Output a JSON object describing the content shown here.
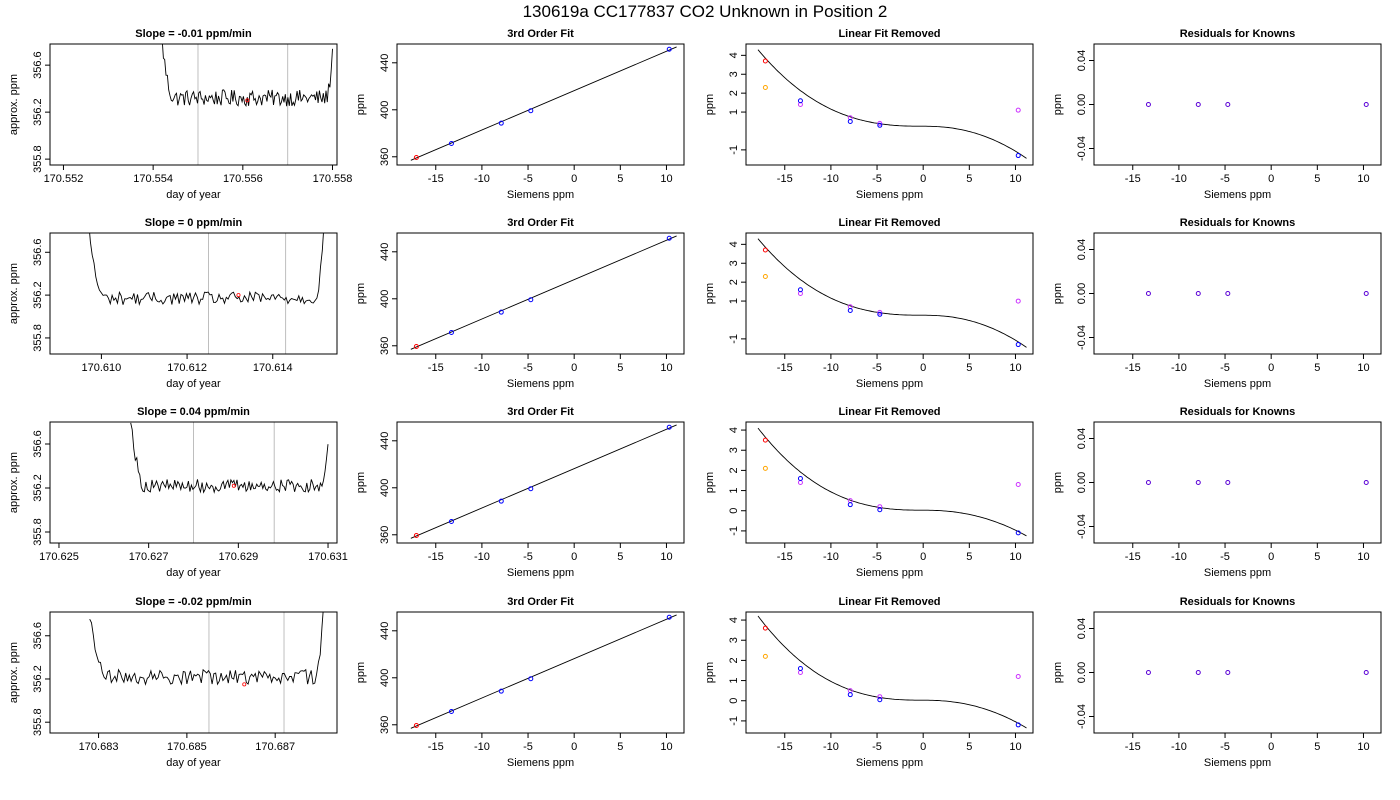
{
  "main_title": "130619a     CC177837   CO2 Unknown in Position  2",
  "colors": {
    "trace": "#000000",
    "gridline": "#bebebe",
    "known": "#0000ff",
    "target": "#ff0000",
    "orange": "#ffa500",
    "magenta": "#cc33ff",
    "residual": "#5a00d6"
  },
  "chart_data": [
    {
      "type": "line",
      "row": 1,
      "panel": "time-series",
      "title": "Slope =  -0.01  ppm/min",
      "xlabel": "day of year",
      "ylabel": "approx. ppm",
      "xlim": [
        170.5517,
        170.5581
      ],
      "ylim": [
        355.75,
        356.78
      ],
      "xticks": [
        "170.552",
        "170.554",
        "170.556",
        "170.558"
      ],
      "xtick_values": [
        170.552,
        170.554,
        170.556,
        170.558
      ],
      "yticks": [
        "355.8",
        "356.2",
        "356.6"
      ],
      "ytick_values": [
        355.8,
        356.2,
        356.6
      ],
      "trace_x_range": [
        170.5542,
        170.558
      ],
      "baseline": 356.32,
      "noise": 0.07,
      "start_level": 356.8,
      "end_level": 356.72,
      "vlines": [
        170.555,
        170.557
      ],
      "highlight": [
        170.5561,
        356.3
      ]
    },
    {
      "type": "scatter",
      "row": 1,
      "panel": "fit",
      "title": "3rd Order Fit",
      "xlabel": "Siemens ppm",
      "ylabel": "ppm",
      "xlim": [
        -19.2,
        11.9
      ],
      "ylim": [
        353,
        456
      ],
      "xticks": [
        "-15",
        "-10",
        "-5",
        "0",
        "5",
        "10"
      ],
      "xtick_values": [
        -15,
        -10,
        -5,
        0,
        5,
        10
      ],
      "yticks": [
        "360",
        "400",
        "440"
      ],
      "ytick_values": [
        360,
        400,
        440
      ],
      "fit_line": {
        "x0": -17.7,
        "y0": 357.0,
        "x1": 11.1,
        "y1": 453.5
      },
      "knowns": {
        "x": [
          -13.3,
          -7.9,
          -4.7,
          10.3
        ],
        "y": [
          371.3,
          388.6,
          399.2,
          451.5
        ]
      },
      "target": {
        "x": [
          -17.1
        ],
        "y": [
          359.4
        ]
      }
    },
    {
      "type": "scatter",
      "row": 1,
      "panel": "linear-fit-removed",
      "title": "Linear Fit Removed",
      "xlabel": "Siemens ppm",
      "ylabel": "ppm",
      "xlim": [
        -19.2,
        11.9
      ],
      "ylim": [
        -1.8,
        4.6
      ],
      "xticks": [
        "-15",
        "-10",
        "-5",
        "0",
        "5",
        "10"
      ],
      "xtick_values": [
        -15,
        -10,
        -5,
        0,
        5,
        10
      ],
      "yticks": [
        "-1",
        "1",
        "2",
        "3",
        "4"
      ],
      "ytick_values": [
        -1,
        1,
        2,
        3,
        4
      ],
      "curve_x_range": [
        -17.9,
        11.2
      ],
      "curve_coeffs": [
        0.3,
        -0.0037,
        -0.0113,
        -0.00085
      ],
      "knowns": {
        "x": [
          -13.3,
          -7.9,
          -4.7,
          10.3
        ],
        "y": [
          1.6,
          0.5,
          0.3,
          -1.3
        ]
      },
      "magenta": {
        "x": [
          -13.3,
          -7.9,
          -4.7,
          10.3
        ],
        "y": [
          1.4,
          0.7,
          0.4,
          1.1
        ]
      },
      "orange": {
        "x": [
          -17.1
        ],
        "y": [
          2.3
        ]
      },
      "target": {
        "x": [
          -17.1
        ],
        "y": [
          3.7
        ]
      }
    },
    {
      "type": "scatter",
      "row": 1,
      "panel": "residuals",
      "title": "Residuals for Knowns",
      "xlabel": "Siemens ppm",
      "ylabel": "ppm",
      "xlim": [
        -19.2,
        11.9
      ],
      "ylim": [
        -0.055,
        0.055
      ],
      "xticks": [
        "-15",
        "-10",
        "-5",
        "0",
        "5",
        "10"
      ],
      "xtick_values": [
        -15,
        -10,
        -5,
        0,
        5,
        10
      ],
      "yticks": [
        "-0.04",
        "0.00",
        "0.04"
      ],
      "ytick_values": [
        -0.04,
        0.0,
        0.04
      ],
      "points": {
        "x": [
          -13.3,
          -7.9,
          -4.7,
          10.3
        ],
        "y": [
          0,
          0,
          0,
          0
        ]
      }
    },
    {
      "type": "line",
      "row": 2,
      "panel": "time-series",
      "title": "Slope =  0  ppm/min",
      "xlabel": "day of year",
      "ylabel": "approx. ppm",
      "xlim": [
        170.6088,
        170.6155
      ],
      "ylim": [
        355.65,
        356.78
      ],
      "xticks": [
        "170.610",
        "170.612",
        "170.614"
      ],
      "xtick_values": [
        170.61,
        170.612,
        170.614
      ],
      "yticks": [
        "355.8",
        "356.2",
        "356.6"
      ],
      "ytick_values": [
        355.8,
        356.2,
        356.6
      ],
      "trace_x_range": [
        170.6097,
        170.6152
      ],
      "baseline": 356.17,
      "noise": 0.06,
      "start_level": 356.85,
      "end_level": 356.85,
      "vlines": [
        170.6125,
        170.6143
      ],
      "highlight": [
        170.6132,
        356.2
      ]
    },
    {
      "type": "scatter",
      "row": 2,
      "panel": "fit",
      "title": "3rd Order Fit",
      "xlabel": "Siemens ppm",
      "ylabel": "ppm",
      "xlim": [
        -19.2,
        11.9
      ],
      "ylim": [
        353,
        456
      ],
      "xticks": [
        "-15",
        "-10",
        "-5",
        "0",
        "5",
        "10"
      ],
      "xtick_values": [
        -15,
        -10,
        -5,
        0,
        5,
        10
      ],
      "yticks": [
        "360",
        "400",
        "440"
      ],
      "ytick_values": [
        360,
        400,
        440
      ],
      "fit_line": {
        "x0": -17.7,
        "y0": 357.0,
        "x1": 11.1,
        "y1": 453.5
      },
      "knowns": {
        "x": [
          -13.3,
          -7.9,
          -4.7,
          10.3
        ],
        "y": [
          371.3,
          388.6,
          399.2,
          451.5
        ]
      },
      "target": {
        "x": [
          -17.1
        ],
        "y": [
          359.4
        ]
      }
    },
    {
      "type": "scatter",
      "row": 2,
      "panel": "linear-fit-removed",
      "title": "Linear Fit Removed",
      "xlabel": "Siemens ppm",
      "ylabel": "ppm",
      "xlim": [
        -19.2,
        11.9
      ],
      "ylim": [
        -1.8,
        4.6
      ],
      "xticks": [
        "-15",
        "-10",
        "-5",
        "0",
        "5",
        "10"
      ],
      "xtick_values": [
        -15,
        -10,
        -5,
        0,
        5,
        10
      ],
      "yticks": [
        "-1",
        "1",
        "2",
        "3",
        "4"
      ],
      "ytick_values": [
        -1,
        1,
        2,
        3,
        4
      ],
      "curve_x_range": [
        -17.9,
        11.2
      ],
      "curve_coeffs": [
        0.3,
        -0.0037,
        -0.0113,
        -0.00085
      ],
      "knowns": {
        "x": [
          -13.3,
          -7.9,
          -4.7,
          10.3
        ],
        "y": [
          1.6,
          0.5,
          0.3,
          -1.3
        ]
      },
      "magenta": {
        "x": [
          -13.3,
          -7.9,
          -4.7,
          10.3
        ],
        "y": [
          1.4,
          0.7,
          0.4,
          1.0
        ]
      },
      "orange": {
        "x": [
          -17.1
        ],
        "y": [
          2.3
        ]
      },
      "target": {
        "x": [
          -17.1
        ],
        "y": [
          3.7
        ]
      }
    },
    {
      "type": "scatter",
      "row": 2,
      "panel": "residuals",
      "title": "Residuals for Knowns",
      "xlabel": "Siemens ppm",
      "ylabel": "ppm",
      "xlim": [
        -19.2,
        11.9
      ],
      "ylim": [
        -0.055,
        0.055
      ],
      "xticks": [
        "-15",
        "-10",
        "-5",
        "0",
        "5",
        "10"
      ],
      "xtick_values": [
        -15,
        -10,
        -5,
        0,
        5,
        10
      ],
      "yticks": [
        "-0.04",
        "0.00",
        "0.04"
      ],
      "ytick_values": [
        -0.04,
        0.0,
        0.04
      ],
      "points": {
        "x": [
          -13.3,
          -7.9,
          -4.7,
          10.3
        ],
        "y": [
          0,
          0,
          0,
          0
        ]
      }
    },
    {
      "type": "line",
      "row": 3,
      "panel": "time-series",
      "title": "Slope =  0.04  ppm/min",
      "xlabel": "day of year",
      "ylabel": "approx. ppm",
      "xlim": [
        170.6248,
        170.6312
      ],
      "ylim": [
        355.7,
        356.8
      ],
      "xticks": [
        "170.625",
        "170.627",
        "170.629",
        "170.631"
      ],
      "xtick_values": [
        170.625,
        170.627,
        170.629,
        170.631
      ],
      "yticks": [
        "355.8",
        "356.2",
        "356.6"
      ],
      "ytick_values": [
        355.8,
        356.2,
        356.6
      ],
      "trace_x_range": [
        170.6266,
        170.631
      ],
      "baseline": 356.22,
      "noise": 0.06,
      "start_level": 356.85,
      "end_level": 356.56,
      "vlines": [
        170.628,
        170.6298
      ],
      "highlight": [
        170.6289,
        356.22
      ]
    },
    {
      "type": "scatter",
      "row": 3,
      "panel": "fit",
      "title": "3rd Order Fit",
      "xlabel": "Siemens ppm",
      "ylabel": "ppm",
      "xlim": [
        -19.2,
        11.9
      ],
      "ylim": [
        353,
        456
      ],
      "xticks": [
        "-15",
        "-10",
        "-5",
        "0",
        "5",
        "10"
      ],
      "xtick_values": [
        -15,
        -10,
        -5,
        0,
        5,
        10
      ],
      "yticks": [
        "360",
        "400",
        "440"
      ],
      "ytick_values": [
        360,
        400,
        440
      ],
      "fit_line": {
        "x0": -17.7,
        "y0": 357.0,
        "x1": 11.1,
        "y1": 453.5
      },
      "knowns": {
        "x": [
          -13.3,
          -7.9,
          -4.7,
          10.3
        ],
        "y": [
          371.3,
          388.6,
          399.2,
          451.5
        ]
      },
      "target": {
        "x": [
          -17.1
        ],
        "y": [
          359.4
        ]
      }
    },
    {
      "type": "scatter",
      "row": 3,
      "panel": "linear-fit-removed",
      "title": "Linear Fit Removed",
      "xlabel": "Siemens ppm",
      "ylabel": "ppm",
      "xlim": [
        -19.2,
        11.9
      ],
      "ylim": [
        -1.6,
        4.4
      ],
      "xticks": [
        "-15",
        "-10",
        "-5",
        "0",
        "5",
        "10"
      ],
      "xtick_values": [
        -15,
        -10,
        -5,
        0,
        5,
        10
      ],
      "yticks": [
        "-1",
        "0",
        "1",
        "2",
        "3",
        "4"
      ],
      "ytick_values": [
        -1,
        0,
        1,
        2,
        3,
        4
      ],
      "curve_x_range": [
        -17.9,
        11.2
      ],
      "curve_coeffs": [
        0.0,
        0.0,
        -0.0113,
        -0.00085
      ],
      "knowns": {
        "x": [
          -13.3,
          -7.9,
          -4.7,
          10.3
        ],
        "y": [
          1.6,
          0.3,
          0.05,
          -1.1
        ]
      },
      "magenta": {
        "x": [
          -13.3,
          -7.9,
          -4.7,
          10.3
        ],
        "y": [
          1.4,
          0.5,
          0.2,
          1.3
        ]
      },
      "orange": {
        "x": [
          -17.1
        ],
        "y": [
          2.1
        ]
      },
      "target": {
        "x": [
          -17.1
        ],
        "y": [
          3.5
        ]
      }
    },
    {
      "type": "scatter",
      "row": 3,
      "panel": "residuals",
      "title": "Residuals for Knowns",
      "xlabel": "Siemens ppm",
      "ylabel": "ppm",
      "xlim": [
        -19.2,
        11.9
      ],
      "ylim": [
        -0.055,
        0.055
      ],
      "xticks": [
        "-15",
        "-10",
        "-5",
        "0",
        "5",
        "10"
      ],
      "xtick_values": [
        -15,
        -10,
        -5,
        0,
        5,
        10
      ],
      "yticks": [
        "-0.04",
        "0.00",
        "0.04"
      ],
      "ytick_values": [
        -0.04,
        0.0,
        0.04
      ],
      "points": {
        "x": [
          -13.3,
          -7.9,
          -4.7,
          10.3
        ],
        "y": [
          0,
          0,
          0,
          0
        ]
      }
    },
    {
      "type": "line",
      "row": 4,
      "panel": "time-series",
      "title": "Slope =  -0.02  ppm/min",
      "xlabel": "day of year",
      "ylabel": "approx. ppm",
      "xlim": [
        170.6819,
        170.6884
      ],
      "ylim": [
        355.7,
        356.82
      ],
      "xticks": [
        "170.683",
        "170.685",
        "170.687"
      ],
      "xtick_values": [
        170.683,
        170.685,
        170.687
      ],
      "yticks": [
        "355.8",
        "356.2",
        "356.6"
      ],
      "ytick_values": [
        355.8,
        356.2,
        356.6
      ],
      "trace_x_range": [
        170.6828,
        170.6881
      ],
      "baseline": 356.22,
      "noise": 0.07,
      "start_level": 356.8,
      "end_level": 356.85,
      "vlines": [
        170.6855,
        170.6872
      ],
      "highlight": [
        170.6863,
        356.15
      ]
    },
    {
      "type": "scatter",
      "row": 4,
      "panel": "fit",
      "title": "3rd Order Fit",
      "xlabel": "Siemens ppm",
      "ylabel": "ppm",
      "xlim": [
        -19.2,
        11.9
      ],
      "ylim": [
        353,
        456
      ],
      "xticks": [
        "-15",
        "-10",
        "-5",
        "0",
        "5",
        "10"
      ],
      "xtick_values": [
        -15,
        -10,
        -5,
        0,
        5,
        10
      ],
      "yticks": [
        "360",
        "400",
        "440"
      ],
      "ytick_values": [
        360,
        400,
        440
      ],
      "fit_line": {
        "x0": -17.7,
        "y0": 357.0,
        "x1": 11.1,
        "y1": 453.5
      },
      "knowns": {
        "x": [
          -13.3,
          -7.9,
          -4.7,
          10.3
        ],
        "y": [
          371.3,
          388.6,
          399.2,
          451.5
        ]
      },
      "target": {
        "x": [
          -17.1
        ],
        "y": [
          359.4
        ]
      }
    },
    {
      "type": "scatter",
      "row": 4,
      "panel": "linear-fit-removed",
      "title": "Linear Fit Removed",
      "xlabel": "Siemens ppm",
      "ylabel": "ppm",
      "xlim": [
        -19.2,
        11.9
      ],
      "ylim": [
        -1.6,
        4.4
      ],
      "xticks": [
        "-15",
        "-10",
        "-5",
        "0",
        "5",
        "10"
      ],
      "xtick_values": [
        -15,
        -10,
        -5,
        0,
        5,
        10
      ],
      "yticks": [
        "-1",
        "0",
        "1",
        "2",
        "3",
        "4"
      ],
      "ytick_values": [
        -1,
        0,
        1,
        2,
        3,
        4
      ],
      "curve_x_range": [
        -17.9,
        11.2
      ],
      "curve_coeffs": [
        0.0,
        0.0,
        -0.0113,
        -0.00085
      ],
      "knowns": {
        "x": [
          -13.3,
          -7.9,
          -4.7,
          10.3
        ],
        "y": [
          1.6,
          0.3,
          0.05,
          -1.2
        ]
      },
      "magenta": {
        "x": [
          -13.3,
          -7.9,
          -4.7,
          10.3
        ],
        "y": [
          1.4,
          0.5,
          0.2,
          1.2
        ]
      },
      "orange": {
        "x": [
          -17.1
        ],
        "y": [
          2.2
        ]
      },
      "target": {
        "x": [
          -17.1
        ],
        "y": [
          3.6
        ]
      }
    },
    {
      "type": "scatter",
      "row": 4,
      "panel": "residuals",
      "title": "Residuals for Knowns",
      "xlabel": "Siemens ppm",
      "ylabel": "ppm",
      "xlim": [
        -19.2,
        11.9
      ],
      "ylim": [
        -0.055,
        0.055
      ],
      "xticks": [
        "-15",
        "-10",
        "-5",
        "0",
        "5",
        "10"
      ],
      "xtick_values": [
        -15,
        -10,
        -5,
        0,
        5,
        10
      ],
      "yticks": [
        "-0.04",
        "0.00",
        "0.04"
      ],
      "ytick_values": [
        -0.04,
        0.0,
        0.04
      ],
      "points": {
        "x": [
          -13.3,
          -7.9,
          -4.7,
          10.3
        ],
        "y": [
          0,
          0,
          0,
          0
        ]
      }
    }
  ]
}
